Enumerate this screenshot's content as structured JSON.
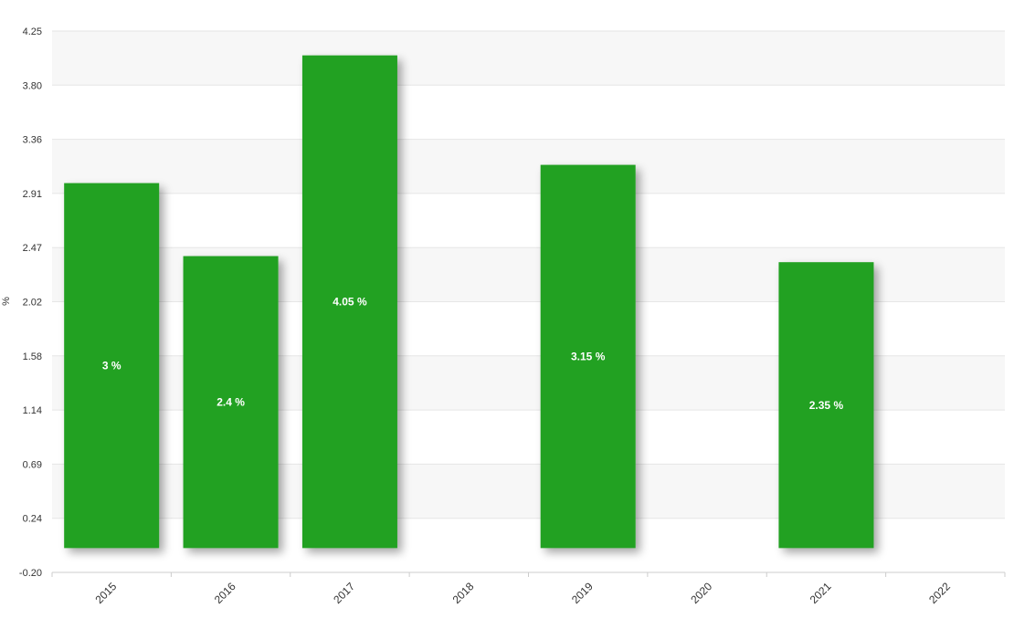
{
  "chart_data": {
    "type": "bar",
    "categories": [
      "2015",
      "2016",
      "2017",
      "2018",
      "2019",
      "2020",
      "2021",
      "2022"
    ],
    "series": [
      {
        "values": [
          3,
          2.4,
          4.05,
          null,
          3.15,
          null,
          2.35,
          null
        ],
        "data_labels": [
          "3 %",
          "2.4 %",
          "4.05 %",
          "",
          "3.15 %",
          "",
          "2.35 %",
          ""
        ]
      }
    ],
    "ylabel": "%",
    "xlabel": "",
    "ylim": [
      -0.2,
      4.25
    ],
    "yticks": [
      "4.25",
      "3.80",
      "3.36",
      "2.91",
      "2.47",
      "2.02",
      "1.58",
      "1.14",
      "0.69",
      "0.24",
      "-0.20"
    ],
    "grid": true,
    "legend": "none",
    "colors": {
      "bar": "#21a121",
      "band": "#f7f7f7",
      "grid": "#e6e6e6"
    }
  }
}
